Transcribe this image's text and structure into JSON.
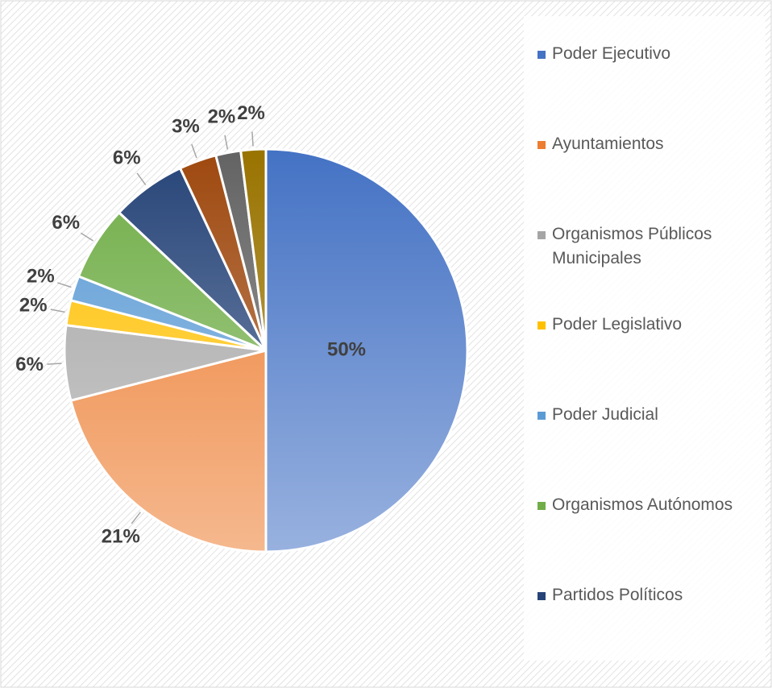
{
  "chart_data": {
    "type": "pie",
    "categories": [
      "Poder Ejecutivo",
      "Ayuntamientos",
      "Organismos Públicos Municipales",
      "Poder Legislativo",
      "Poder Judicial",
      "Organismos Autónomos",
      "Partidos Políticos",
      null,
      null,
      null
    ],
    "values": [
      50,
      21,
      6,
      2,
      2,
      6,
      6,
      3,
      2,
      2
    ],
    "value_labels": [
      "50%",
      "21%",
      "6%",
      "2%",
      "2%",
      "6%",
      "6%",
      "3%",
      "2%",
      "2%"
    ],
    "colors": [
      "#4472c4",
      "#ed7d31",
      "#a5a5a5",
      "#ffc000",
      "#5b9bd5",
      "#70ad47",
      "#264478",
      "#9e480e",
      "#636363",
      "#997300"
    ],
    "legend": "right"
  }
}
